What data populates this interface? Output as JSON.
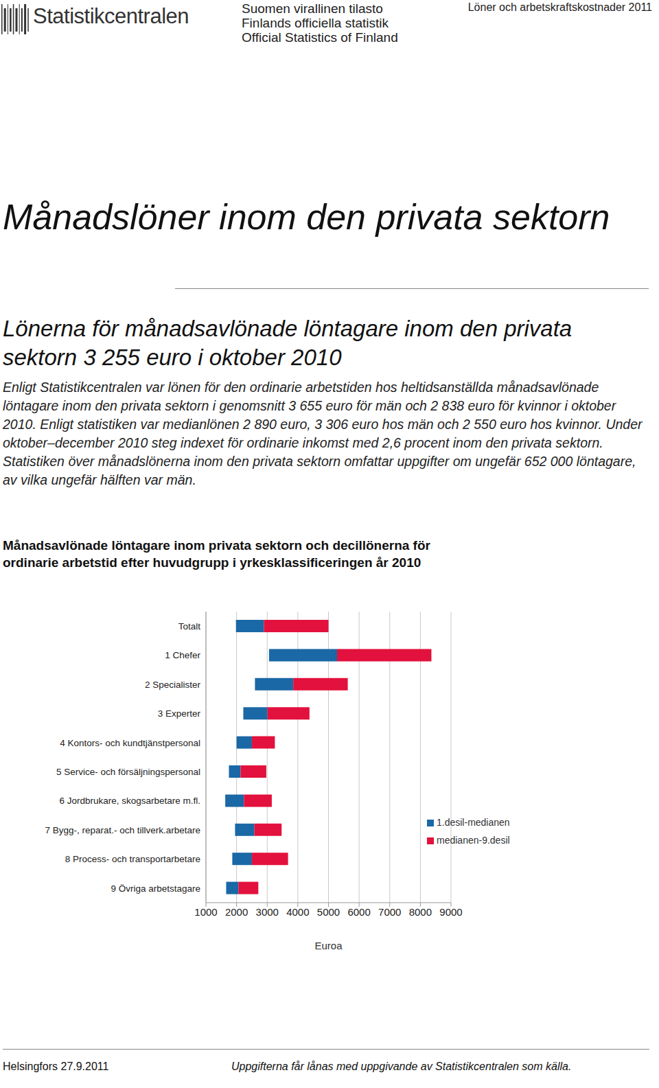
{
  "header": {
    "logo": "Statistikcentralen",
    "official": [
      "Suomen virallinen tilasto",
      "Finlands officiella statistik",
      "Official Statistics of Finland"
    ],
    "publication": "Löner och arbetskraftskostnader 2011"
  },
  "title": "Månadslöner inom den privata sektorn",
  "heading": "Lönerna för månadsavlönade löntagare inom den privata sektorn 3 255 euro i oktober 2010",
  "body": "Enligt Statistikcentralen var lönen för den ordinarie arbetstiden hos heltidsanställda månadsavlönade löntagare inom den privata sektorn i genomsnitt 3 655 euro för män och 2 838 euro för kvinnor i oktober 2010. Enligt statistiken var medianlönen 2 890 euro, 3 306 euro hos män och 2 550 euro hos kvinnor. Under oktober–december 2010 steg indexet för ordinarie inkomst med 2,6 procent inom den privata sektorn. Statistiken över månadslönerna inom den privata sektorn omfattar uppgifter om ungefär 652 000 löntagare, av vilka ungefär hälften var män.",
  "chart_caption": "Månadsavlönade löntagare inom privata sektorn och decillönerna för ordinarie arbetstid efter huvudgrupp i yrkesklassificeringen år 2010",
  "chart_data": {
    "type": "bar",
    "orientation": "horizontal",
    "categories": [
      "Totalt",
      "1 Chefer",
      "2 Specialister",
      "3 Experter",
      "4 Kontors- och kundtjänstpersonal",
      "5 Service- och försäljningspersonal",
      "6 Jordbrukare, skogsarbetare m.fl.",
      "7 Bygg-, reparat.- och tillverk.arbetare",
      "8 Process- och transportarbetare",
      "9 Övriga arbetstagare"
    ],
    "series": [
      {
        "name": "1.desil-medianen",
        "color": "#1a68a6",
        "values": [
          [
            1980,
            2890
          ],
          [
            3060,
            5280
          ],
          [
            2600,
            3850
          ],
          [
            2220,
            3010
          ],
          [
            2000,
            2500
          ],
          [
            1750,
            2130
          ],
          [
            1630,
            2240
          ],
          [
            1950,
            2580
          ],
          [
            1860,
            2500
          ],
          [
            1660,
            2060
          ]
        ]
      },
      {
        "name": "medianen-9.desil",
        "color": "#e3113d",
        "values": [
          [
            2890,
            5000
          ],
          [
            5280,
            8360
          ],
          [
            3850,
            5630
          ],
          [
            3010,
            4380
          ],
          [
            2500,
            3250
          ],
          [
            2130,
            2970
          ],
          [
            2240,
            3150
          ],
          [
            2580,
            3470
          ],
          [
            2500,
            3680
          ],
          [
            2060,
            2710
          ]
        ]
      }
    ],
    "xlabel": "Euroa",
    "xlim": [
      1000,
      9000
    ],
    "xticks": [
      1000,
      2000,
      3000,
      4000,
      5000,
      6000,
      7000,
      8000,
      9000
    ],
    "grid": true,
    "legend": "right"
  },
  "footer": {
    "place_date": "Helsingfors 27.9.2011",
    "note": "Uppgifterna får lånas med uppgivande av Statistikcentralen som källa."
  }
}
